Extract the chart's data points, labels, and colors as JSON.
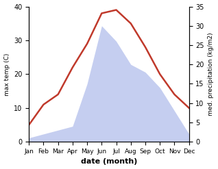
{
  "months": [
    "Jan",
    "Feb",
    "Mar",
    "Apr",
    "May",
    "Jun",
    "Jul",
    "Aug",
    "Sep",
    "Oct",
    "Nov",
    "Dec"
  ],
  "temp": [
    5,
    11,
    14,
    22,
    29,
    38,
    39,
    35,
    28,
    20,
    14,
    10
  ],
  "precip": [
    1,
    2,
    3,
    4,
    15,
    30,
    26,
    20,
    18,
    14,
    8,
    2
  ],
  "temp_color": "#c0392b",
  "precip_fill_color": "#c5cef0",
  "ylabel_left": "max temp (C)",
  "ylabel_right": "med. precipitation (kg/m2)",
  "xlabel": "date (month)",
  "ylim_left": [
    0,
    40
  ],
  "ylim_right": [
    0,
    35
  ],
  "yticks_left": [
    0,
    10,
    20,
    30,
    40
  ],
  "yticks_right": [
    0,
    5,
    10,
    15,
    20,
    25,
    30,
    35
  ],
  "bg_color": "#ffffff",
  "line_width": 1.8
}
